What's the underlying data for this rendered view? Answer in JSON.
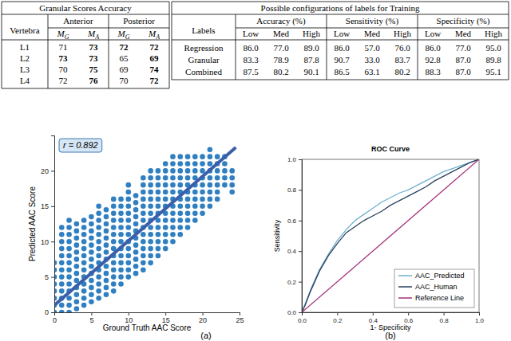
{
  "tables": [
    {
      "title": "Granular Scores Accuracy",
      "header_row_label": "Vertebra",
      "groups": [
        {
          "label": "Anterior",
          "columns": [
            {
              "base": "M",
              "sub": "G"
            },
            {
              "base": "M",
              "sub": "A"
            }
          ]
        },
        {
          "label": "Posterior",
          "columns": [
            {
              "base": "M",
              "sub": "G"
            },
            {
              "base": "M",
              "sub": "A"
            }
          ]
        }
      ],
      "rows": [
        {
          "label": "L1",
          "cells": [
            {
              "text": "71",
              "bold": false
            },
            {
              "text": "73",
              "bold": true
            },
            {
              "text": "72",
              "bold": true
            },
            {
              "text": "72",
              "bold": true
            }
          ]
        },
        {
          "label": "L2",
          "cells": [
            {
              "text": "73",
              "bold": true
            },
            {
              "text": "73",
              "bold": true
            },
            {
              "text": "65",
              "bold": false
            },
            {
              "text": "69",
              "bold": true
            }
          ]
        },
        {
          "label": "L3",
          "cells": [
            {
              "text": "70",
              "bold": false
            },
            {
              "text": "75",
              "bold": true
            },
            {
              "text": "69",
              "bold": false
            },
            {
              "text": "74",
              "bold": true
            }
          ]
        },
        {
          "label": "L4",
          "cells": [
            {
              "text": "72",
              "bold": false
            },
            {
              "text": "76",
              "bold": true
            },
            {
              "text": "70",
              "bold": false
            },
            {
              "text": "72",
              "bold": true
            }
          ]
        }
      ]
    },
    {
      "title": "Possible configurations of labels for Training",
      "header_row_label": "Labels",
      "groups": [
        {
          "label": "Accuracy (%)",
          "columns": [
            "Low",
            "Med",
            "High"
          ]
        },
        {
          "label": "Sensitivity (%)",
          "columns": [
            "Low",
            "Med",
            "High"
          ]
        },
        {
          "label": "Specificity (%)",
          "columns": [
            "Low",
            "Med",
            "High"
          ]
        }
      ],
      "rows": [
        {
          "label": "Regression",
          "cells": [
            "86.0",
            "77.0",
            "89.0",
            "86.0",
            "57.0",
            "76.0",
            "86.0",
            "77.0",
            "95.0"
          ]
        },
        {
          "label": "Granular",
          "cells": [
            "83.3",
            "78.9",
            "87.8",
            "90.7",
            "33.0",
            "83.7",
            "92.8",
            "87.0",
            "89.8"
          ]
        },
        {
          "label": "Combined",
          "cells": [
            "87.5",
            "80.2",
            "90.1",
            "86.5",
            "63.1",
            "80.2",
            "88.3",
            "87.0",
            "95.1"
          ]
        }
      ]
    }
  ],
  "chart_data": [
    {
      "type": "scatter",
      "x_label": "Ground Truth AAC Score",
      "y_label": "Predicted AAC Score",
      "caption": "(a)",
      "annotation": "r = 0.892",
      "xlim": [
        0,
        25
      ],
      "ylim": [
        0,
        25
      ],
      "xticks": [
        0,
        5,
        10,
        15,
        20,
        25
      ],
      "yticks": [
        0,
        5,
        10,
        15,
        20
      ],
      "series": [
        {
          "type": "scatter",
          "marker": "circle",
          "color": "#2f7fc1",
          "x": [
            0,
            0,
            0,
            0,
            0,
            0,
            0,
            0,
            1,
            1,
            1,
            1,
            1,
            1,
            1,
            1,
            1,
            1,
            1,
            1,
            1,
            2,
            2,
            2,
            2,
            2,
            2,
            2,
            2,
            2,
            2,
            2,
            2,
            2,
            2,
            3,
            3,
            3,
            3,
            3,
            3,
            3,
            3,
            3,
            3,
            3,
            3,
            3,
            4,
            4,
            4,
            4,
            4,
            4,
            4,
            4,
            4,
            4,
            4,
            4,
            4,
            5,
            5,
            5,
            5,
            5,
            5,
            5,
            5,
            5,
            5,
            5,
            5,
            5,
            6,
            6,
            6,
            6,
            6,
            6,
            6,
            6,
            6,
            6,
            6,
            6,
            6,
            6,
            7,
            7,
            7,
            7,
            7,
            7,
            7,
            7,
            7,
            7,
            7,
            7,
            7,
            8,
            8,
            8,
            8,
            8,
            8,
            8,
            8,
            8,
            8,
            8,
            8,
            8,
            8,
            9,
            9,
            9,
            9,
            9,
            9,
            9,
            9,
            9,
            9,
            9,
            9,
            9,
            10,
            10,
            10,
            10,
            10,
            10,
            10,
            10,
            10,
            10,
            10,
            10,
            10,
            10,
            11,
            11,
            11,
            11,
            11,
            11,
            11,
            11,
            11,
            11,
            11,
            11,
            12,
            12,
            12,
            12,
            12,
            12,
            12,
            12,
            12,
            12,
            12,
            12,
            12,
            12,
            13,
            13,
            13,
            13,
            13,
            13,
            13,
            13,
            13,
            13,
            13,
            13,
            13,
            13,
            14,
            14,
            14,
            14,
            14,
            14,
            14,
            14,
            14,
            14,
            14,
            14,
            14,
            15,
            15,
            15,
            15,
            15,
            15,
            15,
            15,
            15,
            15,
            15,
            15,
            15,
            16,
            16,
            16,
            16,
            16,
            16,
            16,
            16,
            16,
            16,
            16,
            16,
            16,
            17,
            17,
            17,
            17,
            17,
            17,
            17,
            17,
            17,
            17,
            17,
            17,
            18,
            18,
            18,
            18,
            18,
            18,
            18,
            18,
            18,
            18,
            18,
            19,
            19,
            19,
            19,
            19,
            19,
            19,
            19,
            19,
            19,
            20,
            20,
            20,
            20,
            20,
            20,
            20,
            20,
            20,
            21,
            21,
            21,
            21,
            21,
            21,
            21,
            21,
            21,
            22,
            22,
            22,
            22,
            22,
            22,
            22,
            23,
            23,
            23,
            23,
            23,
            24,
            24,
            24,
            24
          ],
          "values": [
            0,
            1,
            2,
            3,
            4,
            5,
            6,
            7,
            0,
            1,
            2,
            3,
            4,
            5,
            6,
            7,
            8,
            9,
            10,
            11,
            12,
            0,
            1,
            2,
            3,
            4,
            5,
            6,
            7,
            8,
            9,
            10,
            11,
            12,
            13,
            0.5,
            1.5,
            2.5,
            3.5,
            4.5,
            5.5,
            6.5,
            7.5,
            8.5,
            9.5,
            10.5,
            11.5,
            12.5,
            1,
            2,
            3,
            4,
            5,
            6,
            7,
            8,
            9,
            10,
            11,
            12,
            13,
            1.5,
            2.5,
            3.5,
            4.5,
            5.5,
            6.5,
            7.5,
            8.5,
            9.5,
            10.5,
            11.5,
            12.5,
            13.5,
            2,
            3,
            4,
            5,
            6,
            7,
            8,
            9,
            10,
            11,
            12,
            13,
            14,
            15,
            2.5,
            3.5,
            4.5,
            5.5,
            6.5,
            7.5,
            8.5,
            9.5,
            10.5,
            11.5,
            12.5,
            13.5,
            14.5,
            3,
            4,
            5,
            6,
            7,
            8,
            9,
            10,
            11,
            12,
            13,
            14,
            15,
            16,
            4,
            5,
            6,
            7,
            8,
            9,
            10,
            11,
            12,
            13,
            14,
            15,
            16,
            5,
            6,
            7,
            8,
            9,
            10,
            11,
            12,
            13,
            14,
            15,
            16,
            17,
            18,
            5.5,
            6.5,
            7.5,
            8.5,
            9.5,
            10.5,
            11.5,
            12.5,
            13.5,
            14.5,
            15.5,
            16.5,
            6,
            7,
            8,
            9,
            10,
            11,
            12,
            13,
            14,
            15,
            16,
            17,
            18,
            19,
            7,
            8,
            9,
            10,
            11,
            12,
            13,
            14,
            15,
            16,
            17,
            18,
            19,
            20,
            8,
            9,
            10,
            11,
            12,
            13,
            14,
            15,
            16,
            17,
            18,
            19,
            20,
            9,
            10,
            11,
            12,
            13,
            14,
            15,
            16,
            17,
            18,
            19,
            20,
            21,
            10,
            11,
            12,
            13,
            14,
            15,
            16,
            17,
            18,
            19,
            20,
            21,
            22,
            11,
            12,
            13,
            14,
            15,
            16,
            17,
            18,
            19,
            20,
            21,
            22,
            12,
            13,
            14,
            15,
            16,
            17,
            18,
            19,
            20,
            21,
            22,
            13,
            14,
            15,
            16,
            17,
            18,
            19,
            20,
            21,
            22,
            14,
            15,
            16,
            17,
            18,
            19,
            20,
            21,
            22,
            15,
            16,
            17,
            18,
            19,
            20,
            21,
            22,
            23,
            16,
            17,
            18,
            19,
            20,
            21,
            22,
            18,
            19,
            20,
            21,
            22,
            17,
            18,
            19,
            20
          ]
        },
        {
          "type": "line",
          "color": "#3b5ea8",
          "x": [
            0,
            24.5
          ],
          "values": [
            1.0,
            23.3
          ]
        }
      ]
    },
    {
      "type": "line",
      "title": "ROC Curve",
      "x_label": "1- Specificity",
      "y_label": "Sensitivity",
      "caption": "(b)",
      "xlim": [
        0,
        1
      ],
      "ylim": [
        0,
        1
      ],
      "xticks": [
        {
          "value": 0,
          "label": "0.0"
        },
        0.2,
        0.4,
        0.6,
        0.8,
        {
          "value": 1,
          "label": "1.0"
        }
      ],
      "yticks": [
        {
          "value": 0,
          "label": "0.0"
        },
        0.2,
        0.4,
        0.6,
        0.8,
        {
          "value": 1,
          "label": "1.0"
        }
      ],
      "legend": "lower right",
      "series": [
        {
          "name": "AAC_Predicted",
          "color": "#6fb0cf",
          "x": [
            0,
            0.02,
            0.05,
            0.1,
            0.15,
            0.2,
            0.25,
            0.3,
            0.35,
            0.4,
            0.45,
            0.5,
            0.55,
            0.6,
            0.65,
            0.7,
            0.75,
            0.8,
            0.85,
            0.9,
            0.95,
            1
          ],
          "values": [
            0,
            0.06,
            0.15,
            0.28,
            0.38,
            0.47,
            0.54,
            0.6,
            0.64,
            0.68,
            0.72,
            0.75,
            0.78,
            0.8,
            0.83,
            0.86,
            0.89,
            0.92,
            0.94,
            0.96,
            0.98,
            1
          ]
        },
        {
          "name": "AAC_Human",
          "color": "#2a4060",
          "x": [
            0,
            0.02,
            0.05,
            0.1,
            0.15,
            0.2,
            0.25,
            0.3,
            0.35,
            0.4,
            0.45,
            0.5,
            0.55,
            0.6,
            0.65,
            0.7,
            0.75,
            0.8,
            0.85,
            0.9,
            0.95,
            1
          ],
          "values": [
            0,
            0.05,
            0.14,
            0.27,
            0.37,
            0.45,
            0.52,
            0.56,
            0.6,
            0.63,
            0.66,
            0.7,
            0.73,
            0.76,
            0.79,
            0.82,
            0.86,
            0.89,
            0.92,
            0.95,
            0.98,
            1
          ]
        },
        {
          "name": "Reference Line",
          "color": "#a3307a",
          "x": [
            0,
            1
          ],
          "values": [
            0,
            1
          ]
        }
      ]
    }
  ]
}
